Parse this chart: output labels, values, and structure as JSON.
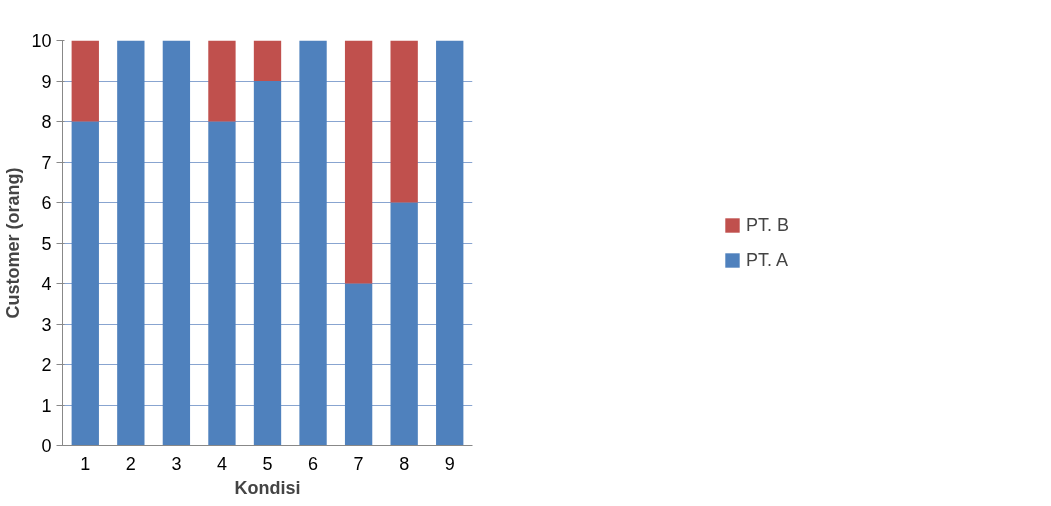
{
  "chart_data": {
    "type": "bar",
    "stacked": true,
    "xlabel": "Kondisi",
    "ylabel": "Customer (orang)",
    "categories": [
      "1",
      "2",
      "3",
      "4",
      "5",
      "6",
      "7",
      "8",
      "9"
    ],
    "series": [
      {
        "name": "PT. A",
        "color": "#4f81bd",
        "values": [
          8,
          10,
          10,
          8,
          9,
          10,
          4,
          6,
          10
        ]
      },
      {
        "name": "PT. B",
        "color": "#c0504d",
        "values": [
          2,
          0,
          0,
          2,
          1,
          0,
          6,
          4,
          0
        ]
      }
    ],
    "ylim": [
      0,
      10
    ],
    "yticks": [
      0,
      1,
      2,
      3,
      4,
      5,
      6,
      7,
      8,
      9,
      10
    ],
    "grid": "y",
    "legend": "right"
  }
}
